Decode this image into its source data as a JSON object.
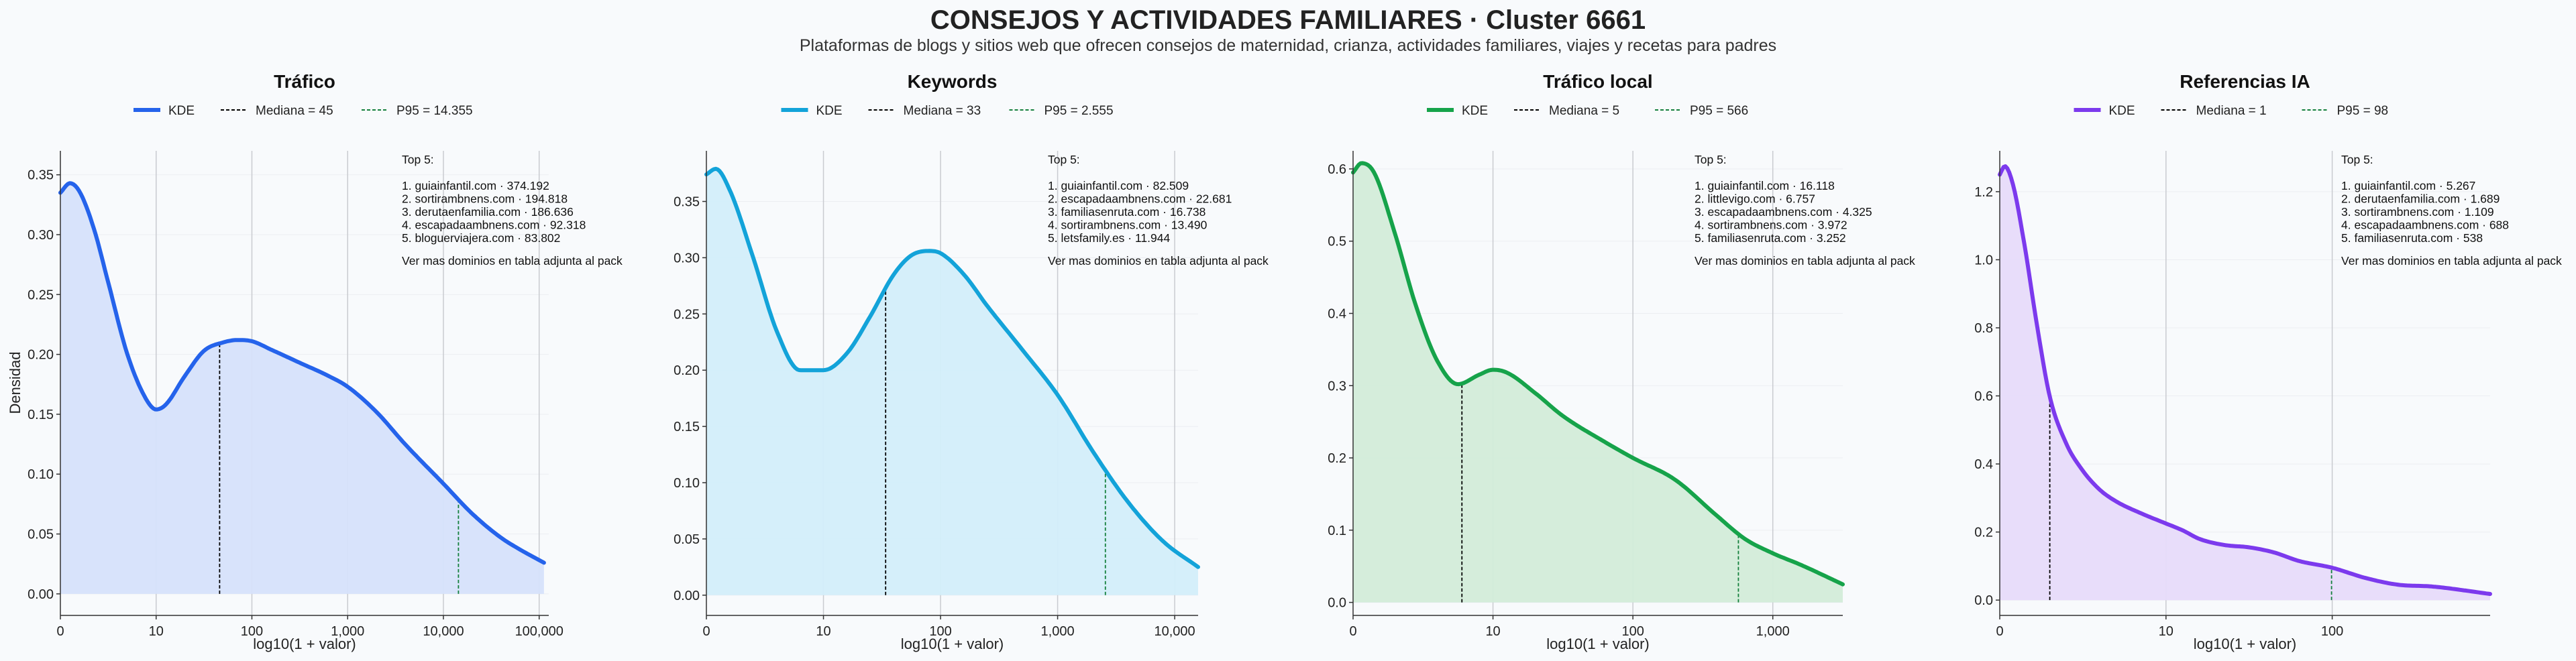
{
  "title": "CONSEJOS Y ACTIVIDADES FAMILIARES · Cluster 6661",
  "subtitle": "Plataformas de blogs y sitios web que ofrecen consejos de maternidad, crianza, actividades familiares, viajes y recetas para padres",
  "shared": {
    "ylabel": "Densidad",
    "xlabel": "log10(1 + valor)",
    "legend_kde": "KDE",
    "top_heading": "Top 5:",
    "note": "Ver mas dominios en tabla adjunta al pack"
  },
  "chart_data": [
    {
      "type": "area",
      "title": "Tráfico",
      "color": "#2563eb",
      "fill": "#d6e2fb",
      "median_label": "Mediana = 45",
      "p95_label": "P95 = 14.355",
      "median_x": 1.663,
      "p95_x": 4.157,
      "xlim": [
        0,
        5.1
      ],
      "ylim": [
        -0.018,
        0.37
      ],
      "xticks": [
        0,
        1,
        2,
        3,
        4,
        5
      ],
      "xticklabels": [
        "0",
        "10",
        "100",
        "1,000",
        "10,000",
        "100,000"
      ],
      "yticks": [
        0,
        0.05,
        0.1,
        0.15,
        0.2,
        0.25,
        0.3,
        0.35
      ],
      "yticklabels": [
        "0.00",
        "0.05",
        "0.10",
        "0.15",
        "0.20",
        "0.25",
        "0.30",
        "0.35"
      ],
      "top5": [
        "1. guiainfantil.com · 374.192",
        "2. sortirambnens.com · 194.818",
        "3. derutaenfamilia.com · 186.636",
        "4. escapadaambnens.com · 92.318",
        "5. bloguerviajera.com · 83.802"
      ],
      "kde": {
        "x": [
          0,
          0.1,
          0.2,
          0.35,
          0.5,
          0.7,
          0.9,
          1.0,
          1.1,
          1.3,
          1.5,
          1.7,
          1.85,
          2.0,
          2.2,
          2.5,
          2.8,
          3.0,
          3.3,
          3.6,
          4.0,
          4.3,
          4.6,
          4.8,
          5.05
        ],
        "y": [
          0.335,
          0.343,
          0.336,
          0.305,
          0.26,
          0.2,
          0.162,
          0.154,
          0.158,
          0.182,
          0.203,
          0.21,
          0.212,
          0.211,
          0.204,
          0.193,
          0.182,
          0.173,
          0.152,
          0.125,
          0.092,
          0.067,
          0.047,
          0.037,
          0.026
        ]
      }
    },
    {
      "type": "area",
      "title": "Keywords",
      "color": "#13a3d9",
      "fill": "#d3eefa",
      "median_label": "Mediana = 33",
      "p95_label": "P95 = 2.555",
      "median_x": 1.531,
      "p95_x": 3.408,
      "xlim": [
        0,
        4.2
      ],
      "ylim": [
        -0.018,
        0.395
      ],
      "xticks": [
        0,
        1,
        2,
        3,
        4
      ],
      "xticklabels": [
        "0",
        "10",
        "100",
        "1,000",
        "10,000"
      ],
      "yticks": [
        0,
        0.05,
        0.1,
        0.15,
        0.2,
        0.25,
        0.3,
        0.35
      ],
      "yticklabels": [
        "0.00",
        "0.05",
        "0.10",
        "0.15",
        "0.20",
        "0.25",
        "0.30",
        "0.35"
      ],
      "top5": [
        "1. guiainfantil.com · 82.509",
        "2. escapadaambnens.com · 22.681",
        "3. familiasenruta.com · 16.738",
        "4. sortirambnens.com · 13.490",
        "5. letsfamily.es · 11.944"
      ],
      "kde": {
        "x": [
          0,
          0.08,
          0.2,
          0.4,
          0.6,
          0.8,
          1.0,
          1.2,
          1.4,
          1.6,
          1.75,
          1.9,
          2.0,
          2.2,
          2.4,
          2.7,
          3.0,
          3.3,
          3.6,
          3.9,
          4.2
        ],
        "y": [
          0.374,
          0.379,
          0.36,
          0.3,
          0.235,
          0.2,
          0.2,
          0.215,
          0.248,
          0.285,
          0.302,
          0.306,
          0.304,
          0.285,
          0.257,
          0.218,
          0.178,
          0.128,
          0.083,
          0.048,
          0.025
        ]
      }
    },
    {
      "type": "area",
      "title": "Tráfico local",
      "color": "#16a34a",
      "fill": "#d3ecd9",
      "median_label": "Mediana = 5",
      "p95_label": "P95 = 566",
      "median_x": 0.778,
      "p95_x": 2.754,
      "xlim": [
        0,
        3.5
      ],
      "ylim": [
        -0.018,
        0.625
      ],
      "xticks": [
        0,
        1,
        2,
        3
      ],
      "xticklabels": [
        "0",
        "10",
        "100",
        "1,000"
      ],
      "yticks": [
        0,
        0.1,
        0.2,
        0.3,
        0.4,
        0.5,
        0.6
      ],
      "yticklabels": [
        "0.0",
        "0.1",
        "0.2",
        "0.3",
        "0.4",
        "0.5",
        "0.6"
      ],
      "top5": [
        "1. guiainfantil.com · 16.118",
        "2. littlevigo.com · 6.757",
        "3. escapadaambnens.com · 4.325",
        "4. sortirambnens.com · 3.972",
        "5. familiasenruta.com · 3.252"
      ],
      "kde": {
        "x": [
          0,
          0.06,
          0.15,
          0.3,
          0.45,
          0.6,
          0.75,
          0.9,
          1.0,
          1.1,
          1.3,
          1.5,
          1.8,
          2.0,
          2.3,
          2.6,
          2.8,
          3.0,
          3.2,
          3.5
        ],
        "y": [
          0.595,
          0.608,
          0.595,
          0.51,
          0.41,
          0.335,
          0.302,
          0.315,
          0.322,
          0.318,
          0.29,
          0.258,
          0.222,
          0.2,
          0.17,
          0.12,
          0.088,
          0.068,
          0.052,
          0.025
        ]
      }
    },
    {
      "type": "area",
      "title": "Referencias IA",
      "color": "#7c3aed",
      "fill": "#e7dbfa",
      "median_label": "Mediana = 1",
      "p95_label": "P95 = 98",
      "median_x": 0.301,
      "p95_x": 1.996,
      "xlim": [
        0,
        2.95
      ],
      "ylim": [
        -0.045,
        1.32
      ],
      "xticks": [
        0,
        1,
        2
      ],
      "xticklabels": [
        "0",
        "10",
        "100"
      ],
      "yticks": [
        0,
        0.2,
        0.4,
        0.6,
        0.8,
        1.0,
        1.2
      ],
      "yticklabels": [
        "0.0",
        "0.2",
        "0.4",
        "0.6",
        "0.8",
        "1.0",
        "1.2"
      ],
      "top5": [
        "1. guiainfantil.com · 5.267",
        "2. derutaenfamilia.com · 1.689",
        "3. sortirambnens.com · 1.109",
        "4. escapadaambnens.com · 688",
        "5. familiasenruta.com · 538"
      ],
      "kde": {
        "x": [
          0,
          0.03,
          0.08,
          0.15,
          0.22,
          0.3,
          0.4,
          0.5,
          0.6,
          0.7,
          0.85,
          1.0,
          1.1,
          1.2,
          1.35,
          1.5,
          1.65,
          1.8,
          2.0,
          2.2,
          2.4,
          2.6,
          2.95
        ],
        "y": [
          1.25,
          1.275,
          1.22,
          1.04,
          0.82,
          0.6,
          0.46,
          0.38,
          0.325,
          0.29,
          0.255,
          0.225,
          0.205,
          0.18,
          0.162,
          0.155,
          0.14,
          0.115,
          0.095,
          0.065,
          0.045,
          0.04,
          0.018
        ]
      }
    }
  ]
}
